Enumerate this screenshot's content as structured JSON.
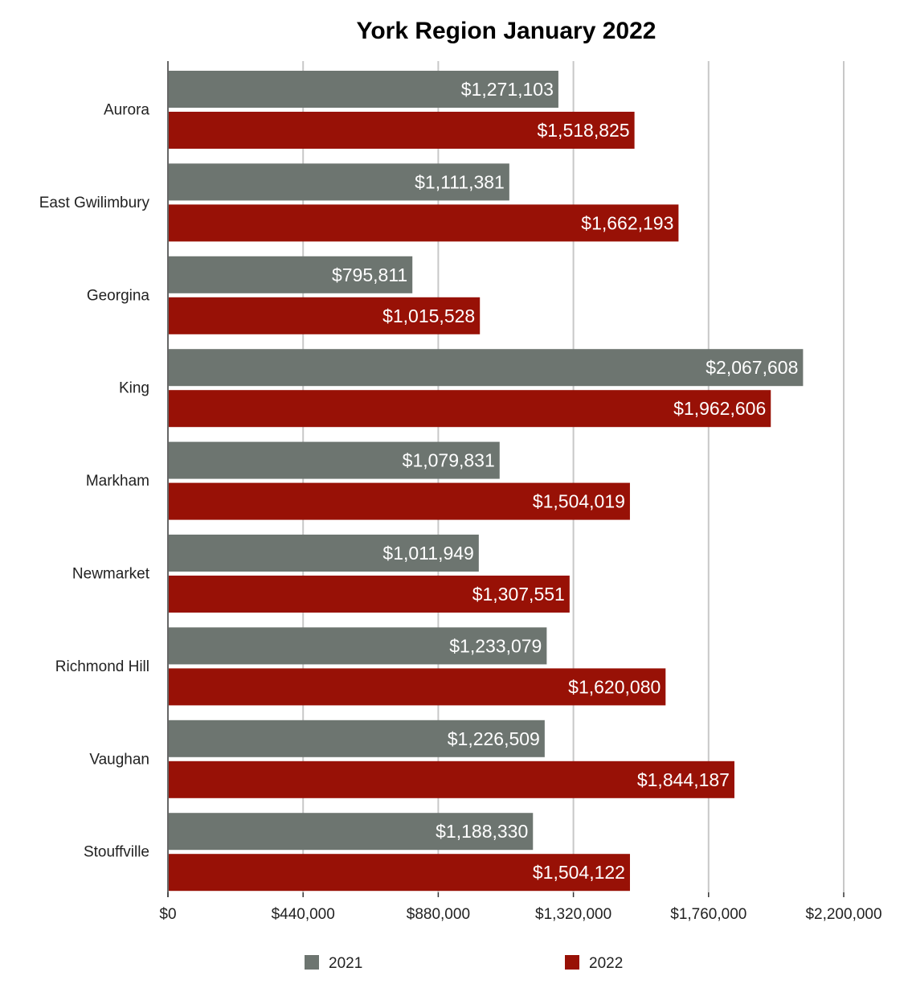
{
  "chart_data": {
    "type": "bar",
    "orientation": "horizontal",
    "title": "York Region January 2022",
    "xlabel": "",
    "ylabel": "",
    "categories": [
      "Aurora",
      "East Gwilimbury",
      "Georgina",
      "King",
      "Markham",
      "Newmarket",
      "Richmond Hill",
      "Vaughan",
      "Stouffville"
    ],
    "series": [
      {
        "name": "2021",
        "color": "#6d7570",
        "values": [
          1271103,
          1111381,
          795811,
          2067608,
          1079831,
          1011949,
          1233079,
          1226509,
          1188330
        ],
        "labels": [
          "$1,271,103",
          "$1,111,381",
          "$795,811",
          "$2,067,608",
          "$1,079,831",
          "$1,011,949",
          "$1,233,079",
          "$1,226,509",
          "$1,188,330"
        ]
      },
      {
        "name": "2022",
        "color": "#981106",
        "values": [
          1518825,
          1662193,
          1015528,
          1962606,
          1504019,
          1307551,
          1620080,
          1844187,
          1504122
        ],
        "labels": [
          "$1,518,825",
          "$1,662,193",
          "$1,015,528",
          "$1,962,606",
          "$1,504,019",
          "$1,307,551",
          "$1,620,080",
          "$1,844,187",
          "$1,504,122"
        ]
      }
    ],
    "xlim": [
      0,
      2200000
    ],
    "x_ticks": [
      0,
      440000,
      880000,
      1320000,
      1760000,
      2200000
    ],
    "x_tick_labels": [
      "$0",
      "$440,000",
      "$880,000",
      "$1,320,000",
      "$1,760,000",
      "$2,200,000"
    ],
    "grid": true,
    "legend_position": "bottom"
  }
}
